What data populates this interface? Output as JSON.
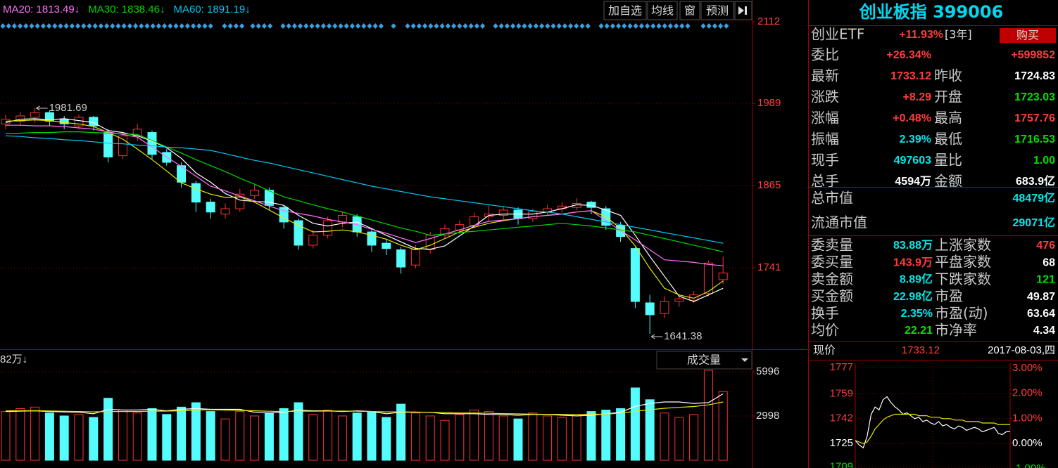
{
  "chart_data": [
    {
      "type": "candlestick",
      "open": [
        1958,
        1962,
        1968,
        1975,
        1965,
        1955,
        1968,
        1945,
        1910,
        1940,
        1945,
        1915,
        1895,
        1868,
        1840,
        1822,
        1830,
        1850,
        1858,
        1832,
        1812,
        1775,
        1790,
        1810,
        1818,
        1795,
        1778,
        1768,
        1745,
        1768,
        1790,
        1798,
        1805,
        1818,
        1820,
        1828,
        1815,
        1825,
        1830,
        1832,
        1840,
        1830,
        1805,
        1770,
        1688,
        1672,
        1690,
        1692,
        1702,
        1723.03
      ],
      "high": [
        1972,
        1976,
        1981.69,
        1978,
        1970,
        1972,
        1970,
        1950,
        1946,
        1958,
        1948,
        1920,
        1900,
        1872,
        1845,
        1838,
        1860,
        1866,
        1862,
        1836,
        1815,
        1798,
        1818,
        1826,
        1822,
        1798,
        1785,
        1772,
        1775,
        1795,
        1806,
        1812,
        1824,
        1835,
        1834,
        1832,
        1830,
        1836,
        1840,
        1846,
        1842,
        1834,
        1810,
        1772,
        1700,
        1698,
        1700,
        1706,
        1752,
        1757.76
      ],
      "low": [
        1950,
        1955,
        1960,
        1955,
        1950,
        1950,
        1948,
        1900,
        1905,
        1932,
        1905,
        1895,
        1862,
        1825,
        1815,
        1815,
        1825,
        1845,
        1828,
        1800,
        1768,
        1770,
        1785,
        1802,
        1788,
        1765,
        1760,
        1732,
        1740,
        1762,
        1785,
        1792,
        1800,
        1812,
        1814,
        1806,
        1810,
        1820,
        1824,
        1828,
        1822,
        1798,
        1780,
        1680,
        1641.38,
        1665,
        1682,
        1688,
        1698,
        1716.53
      ],
      "close": [
        1965,
        1970,
        1975,
        1962,
        1958,
        1968,
        1955,
        1908,
        1940,
        1950,
        1912,
        1900,
        1870,
        1840,
        1825,
        1830,
        1852,
        1858,
        1835,
        1810,
        1775,
        1790,
        1812,
        1820,
        1795,
        1775,
        1770,
        1742,
        1768,
        1790,
        1800,
        1806,
        1818,
        1822,
        1828,
        1815,
        1826,
        1830,
        1834,
        1838,
        1832,
        1805,
        1788,
        1690,
        1670,
        1690,
        1694,
        1700,
        1748,
        1733.12
      ],
      "up_color": "#ff3232",
      "down_color": "#54fcfc",
      "series": [
        {
          "color": "#ffffff",
          "values": [
            1960,
            1965,
            1966,
            1964,
            1966,
            1963,
            1960,
            1948,
            1945,
            1940,
            1932,
            1922,
            1906,
            1884,
            1870,
            1853,
            1843,
            1841,
            1840,
            1835,
            1820,
            1808,
            1804,
            1808,
            1810,
            1800,
            1790,
            1780,
            1770,
            1769,
            1774,
            1789,
            1804,
            1820,
            1822,
            1822,
            1822,
            1825,
            1830,
            1836,
            1835,
            1828,
            1820,
            1790,
            1758,
            1728,
            1698,
            1690,
            1700,
            1710
          ]
        },
        {
          "color": "#e8e800",
          "values": [
            1962,
            1963,
            1964,
            1963,
            1960,
            1958,
            1954,
            1945,
            1935,
            1920,
            1904,
            1887,
            1869,
            1860,
            1852,
            1847,
            1848,
            1840,
            1828,
            1816,
            1805,
            1795,
            1796,
            1798,
            1795,
            1790,
            1784,
            1775,
            1768,
            1775,
            1785,
            1795,
            1802,
            1808,
            1812,
            1815,
            1818,
            1820,
            1822,
            1825,
            1827,
            1818,
            1800,
            1774,
            1740,
            1710,
            1700,
            1695,
            1705,
            1721
          ]
        },
        {
          "name": "MA20: 1813.49↓",
          "color": "#ff70ff",
          "values": [
            1956,
            1956,
            1955,
            1955,
            1954,
            1952,
            1950,
            1946,
            1942,
            1938,
            1923,
            1908,
            1894,
            1879,
            1864,
            1857,
            1849,
            1842,
            1834,
            1827,
            1823,
            1819,
            1814,
            1810,
            1806,
            1799,
            1793,
            1786,
            1779,
            1785,
            1792,
            1798,
            1805,
            1811,
            1813,
            1815,
            1818,
            1820,
            1822,
            1825,
            1827,
            1812,
            1797,
            1783,
            1768,
            1753,
            1751,
            1749,
            1746,
            1744
          ]
        },
        {
          "name": "MA30: 1838.46↓",
          "color": "#00d800",
          "values": [
            1943,
            1944,
            1945,
            1945,
            1946,
            1946,
            1945,
            1944,
            1943,
            1942,
            1933,
            1923,
            1914,
            1904,
            1895,
            1886,
            1876,
            1867,
            1857,
            1848,
            1842,
            1836,
            1830,
            1825,
            1819,
            1813,
            1807,
            1801,
            1796,
            1790,
            1792,
            1794,
            1796,
            1798,
            1800,
            1802,
            1804,
            1806,
            1808,
            1806,
            1804,
            1801,
            1798,
            1795,
            1790,
            1785,
            1780,
            1775,
            1770,
            1765
          ]
        },
        {
          "name": "MA60: 1891.19↓",
          "color": "#00c8f0",
          "values": [
            1940,
            1939,
            1937,
            1936,
            1934,
            1933,
            1931,
            1929,
            1928,
            1926,
            1925,
            1923,
            1922,
            1920,
            1918,
            1913,
            1908,
            1903,
            1899,
            1894,
            1889,
            1884,
            1879,
            1874,
            1869,
            1864,
            1860,
            1856,
            1852,
            1848,
            1845,
            1842,
            1839,
            1836,
            1833,
            1830,
            1827,
            1825,
            1822,
            1818,
            1814,
            1810,
            1806,
            1802,
            1798,
            1794,
            1790,
            1786,
            1782,
            1778
          ]
        }
      ],
      "ylim": [
        1618,
        2123.7
      ],
      "yticks": [
        2112,
        1989,
        1865,
        1741
      ],
      "grid": true,
      "toolbar": [
        "加自选",
        "均线",
        "窗",
        "预测"
      ]
    },
    {
      "type": "bar",
      "title": "82万↓",
      "indicator": "成交量",
      "values": [
        3300,
        3500,
        3600,
        3200,
        3000,
        3100,
        2900,
        4200,
        3400,
        3200,
        3500,
        3100,
        3600,
        3900,
        3300,
        2800,
        3300,
        3000,
        3200,
        3500,
        3900,
        3100,
        3400,
        3000,
        3200,
        3300,
        2900,
        3800,
        3200,
        3000,
        2700,
        3100,
        3400,
        3300,
        3000,
        2800,
        3200,
        3000,
        2900,
        3100,
        3300,
        3400,
        3500,
        4900,
        4100,
        3200,
        2900,
        3100,
        6100,
        4650
      ],
      "series": [
        {
          "color": "#ffffff",
          "values": [
            3300,
            3320,
            3350,
            3300,
            3280,
            3250,
            3150,
            3450,
            3400,
            3400,
            3450,
            3350,
            3450,
            3500,
            3450,
            3450,
            3450,
            3250,
            3200,
            3250,
            3400,
            3350,
            3350,
            3300,
            3350,
            3300,
            3150,
            3250,
            3250,
            3250,
            3150,
            3150,
            3150,
            3100,
            3100,
            3050,
            3100,
            3100,
            3050,
            3000,
            3050,
            3150,
            3250,
            3650,
            3850,
            3950,
            3950,
            3850,
            3900,
            4500
          ]
        },
        {
          "color": "#e8e800",
          "values": [
            3350,
            3350,
            3360,
            3340,
            3320,
            3300,
            3280,
            3300,
            3300,
            3300,
            3320,
            3330,
            3350,
            3400,
            3420,
            3400,
            3380,
            3350,
            3320,
            3300,
            3320,
            3320,
            3330,
            3330,
            3320,
            3300,
            3280,
            3280,
            3270,
            3250,
            3220,
            3200,
            3200,
            3180,
            3160,
            3140,
            3120,
            3110,
            3100,
            3100,
            3110,
            3130,
            3180,
            3320,
            3420,
            3520,
            3580,
            3640,
            3750,
            3950
          ]
        }
      ],
      "ylim": [
        0,
        6470
      ],
      "yticks": [
        2998,
        5996
      ],
      "grid": true
    },
    {
      "type": "line",
      "series": [
        {
          "color": "#ffffff",
          "values": [
            1727,
            1724,
            1722,
            1730,
            1745,
            1750,
            1748,
            1755,
            1757,
            1753,
            1750,
            1748,
            1745,
            1746,
            1744,
            1742,
            1743,
            1740,
            1741,
            1739,
            1738,
            1740,
            1737,
            1738,
            1736,
            1735,
            1737,
            1736,
            1734,
            1735,
            1736,
            1735,
            1733,
            1734,
            1735,
            1736,
            1732,
            1731,
            1733,
            1733.12
          ]
        },
        {
          "color": "#e8e800",
          "values": [
            1727,
            1726,
            1725,
            1726,
            1730,
            1735,
            1738,
            1741,
            1743,
            1744,
            1745,
            1745,
            1745,
            1745,
            1745,
            1745,
            1744,
            1744,
            1744,
            1743,
            1743,
            1743,
            1742,
            1742,
            1742,
            1741,
            1741,
            1741,
            1740,
            1740,
            1740,
            1740,
            1739,
            1739,
            1739,
            1739,
            1738,
            1738,
            1738,
            1738
          ]
        }
      ],
      "ylim": [
        1708.2,
        1779.9
      ],
      "yticks": [
        1777,
        1759,
        1742,
        1725,
        1709
      ],
      "y2lim": [
        -0.97,
        3.19
      ],
      "y2ticks": [
        {
          "value": 3,
          "label": "3.00%"
        },
        {
          "value": 2,
          "label": "2.00%"
        },
        {
          "value": 1,
          "label": "1.00%"
        },
        {
          "value": 0,
          "label": "0.00%"
        },
        {
          "value": -1,
          "label": "-1.00%"
        }
      ],
      "grid": true
    }
  ],
  "quote": {
    "title": "创业板指 399006",
    "etf": {
      "name": "创业ETF",
      "change": "+11.93%",
      "period": "[3年]",
      "button": "购买"
    },
    "rows": [
      [
        "委比",
        "+26.34%",
        "+599852"
      ],
      [
        "最新",
        "1733.12",
        "昨收",
        "1724.83"
      ],
      [
        "涨跌",
        "+8.29",
        "开盘",
        "1723.03"
      ],
      [
        "涨幅",
        "+0.48%",
        "最高",
        "1757.76"
      ],
      [
        "振幅",
        "2.39%",
        "最低",
        "1716.53"
      ],
      [
        "现手",
        "497603",
        "量比",
        "1.00"
      ],
      [
        "总手",
        "4594万",
        "金额",
        "683.9亿"
      ]
    ],
    "market_cap": [
      [
        "总市值",
        "48479亿"
      ],
      [
        "流通市值",
        "29071亿"
      ]
    ],
    "stats": [
      [
        "委卖量",
        "83.88万",
        "上涨家数",
        "476"
      ],
      [
        "委买量",
        "143.9万",
        "平盘家数",
        "68"
      ],
      [
        "卖金额",
        "8.89亿",
        "下跌家数",
        "121"
      ],
      [
        "买金额",
        "22.98亿",
        "市盈",
        "49.87"
      ],
      [
        "换手",
        "2.35%",
        "市盈(动)",
        "63.64"
      ],
      [
        "均价",
        "22.21",
        "市净率",
        "4.34"
      ]
    ],
    "current": [
      "现价",
      "1733.12",
      "2017-08-03,四"
    ]
  }
}
